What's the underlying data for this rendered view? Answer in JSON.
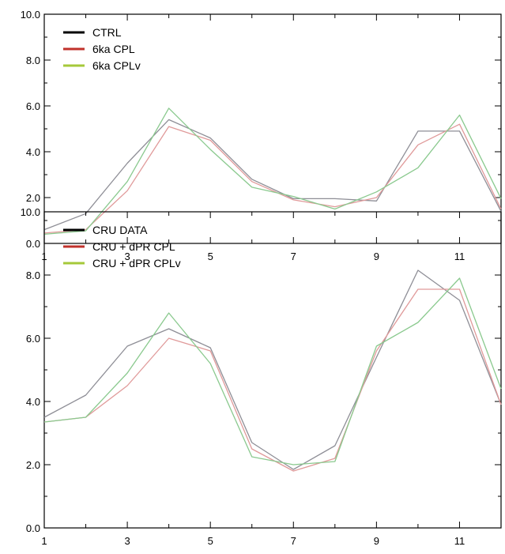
{
  "chart_data": [
    {
      "type": "line",
      "title": "",
      "xlabel": "",
      "ylabel": "",
      "x": [
        1,
        2,
        3,
        4,
        5,
        6,
        7,
        8,
        9,
        10,
        11,
        12
      ],
      "xlim": [
        1,
        12
      ],
      "ylim": [
        0,
        10
      ],
      "x_ticks": [
        1,
        3,
        5,
        7,
        9,
        11
      ],
      "x_tick_labels": [
        "1",
        "3",
        "5",
        "7",
        "9",
        "11"
      ],
      "y_ticks": [
        0,
        2,
        4,
        6,
        8,
        10
      ],
      "y_tick_labels": [
        "0.0",
        "2.0",
        "4.0",
        "6.0",
        "8.0",
        "10.0"
      ],
      "grid": false,
      "legend_position": "top-left",
      "series": [
        {
          "name": "CTRL",
          "color": "#8e8e96",
          "legend_color": "#000000",
          "values": [
            0.6,
            1.3,
            3.5,
            5.4,
            4.6,
            2.8,
            1.95,
            1.95,
            1.85,
            4.9,
            4.9,
            1.4
          ]
        },
        {
          "name": "6ka CPL",
          "color": "#e09a9a",
          "legend_color": "#c0312b",
          "values": [
            0.45,
            0.6,
            2.3,
            5.1,
            4.5,
            2.7,
            1.9,
            1.6,
            2.0,
            4.3,
            5.2,
            1.5
          ]
        },
        {
          "name": "6ka CPLv",
          "color": "#8ac98e",
          "legend_color": "#a5c93a",
          "values": [
            0.4,
            0.55,
            2.7,
            5.9,
            4.1,
            2.45,
            2.05,
            1.5,
            2.25,
            3.3,
            5.6,
            1.95
          ]
        }
      ]
    },
    {
      "type": "line",
      "title": "",
      "xlabel": "",
      "ylabel": "",
      "x": [
        1,
        2,
        3,
        4,
        5,
        6,
        7,
        8,
        9,
        10,
        11,
        12
      ],
      "xlim": [
        1,
        12
      ],
      "ylim": [
        0,
        10
      ],
      "x_ticks": [
        1,
        3,
        5,
        7,
        9,
        11
      ],
      "x_tick_labels": [
        "1",
        "3",
        "5",
        "7",
        "9",
        "11"
      ],
      "y_ticks": [
        0,
        2,
        4,
        6,
        8,
        10
      ],
      "y_tick_labels": [
        "0.0",
        "2.0",
        "4.0",
        "6.0",
        "8.0",
        "10.0"
      ],
      "grid": false,
      "legend_position": "top-left",
      "series": [
        {
          "name": "CRU DATA",
          "color": "#8e8e96",
          "legend_color": "#000000",
          "values": [
            3.5,
            4.2,
            5.75,
            6.3,
            5.7,
            2.7,
            1.85,
            2.6,
            5.4,
            8.15,
            7.2,
            3.9
          ]
        },
        {
          "name": "CRU + dPR CPL",
          "color": "#e09a9a",
          "legend_color": "#c0312b",
          "values": [
            3.35,
            3.5,
            4.5,
            6.0,
            5.6,
            2.5,
            1.8,
            2.2,
            5.6,
            7.55,
            7.55,
            3.9
          ]
        },
        {
          "name": "CRU + dPR CPLv",
          "color": "#8ac98e",
          "legend_color": "#a5c93a",
          "values": [
            3.35,
            3.5,
            4.9,
            6.8,
            5.2,
            2.25,
            2.0,
            2.1,
            5.75,
            6.5,
            7.9,
            4.4
          ]
        }
      ]
    }
  ]
}
